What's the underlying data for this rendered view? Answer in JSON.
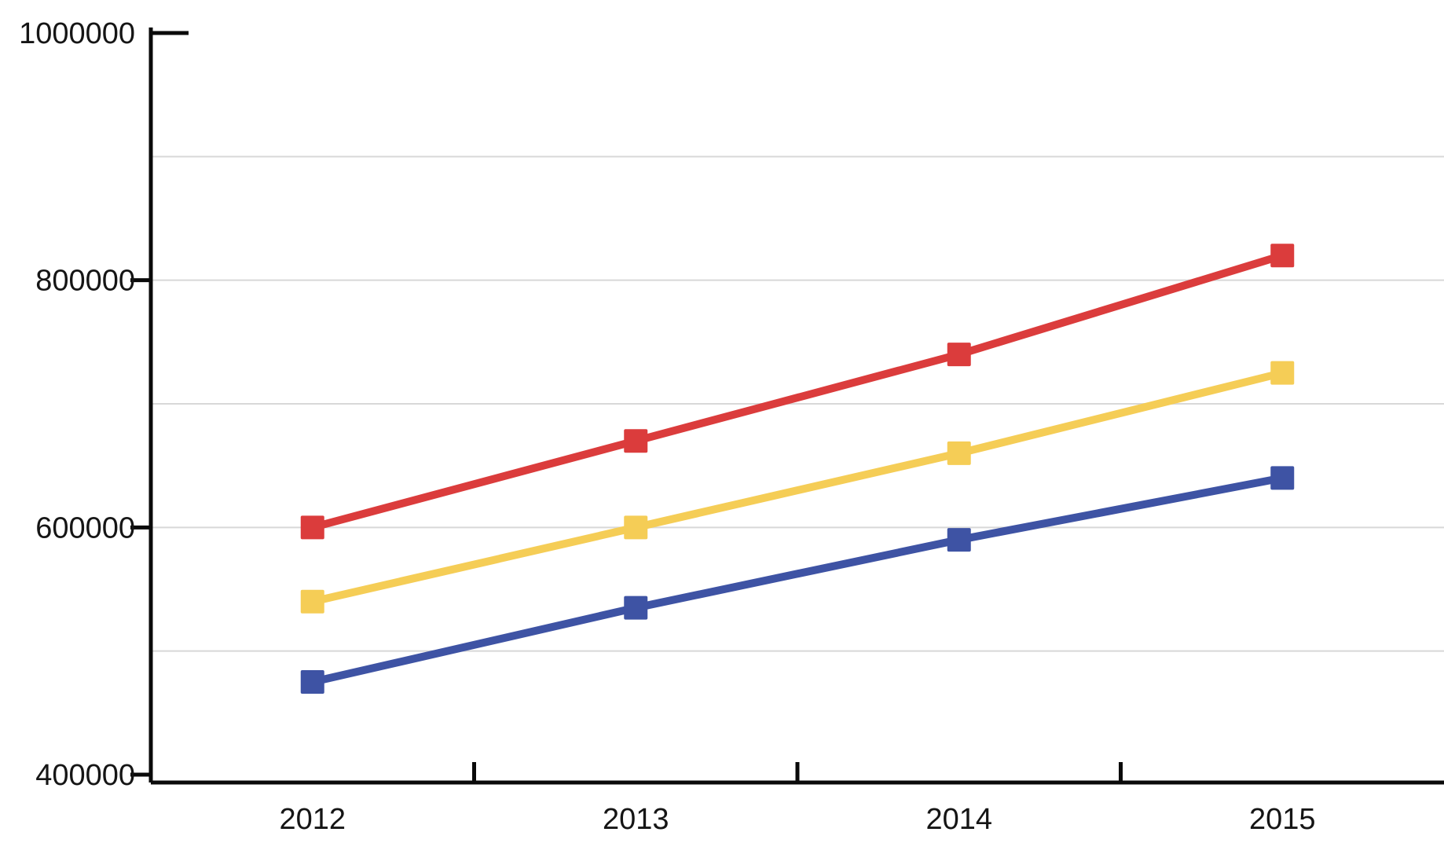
{
  "chart_data": {
    "type": "line",
    "categories": [
      "2012",
      "2013",
      "2014",
      "2015"
    ],
    "series": [
      {
        "name": "blue",
        "color": "#3e53a4",
        "values": [
          475000,
          535000,
          590000,
          640000
        ]
      },
      {
        "name": "yellow",
        "color": "#f5cd56",
        "values": [
          540000,
          600000,
          660000,
          725000
        ]
      },
      {
        "name": "red",
        "color": "#db3c3c",
        "values": [
          600000,
          670000,
          740000,
          820000
        ]
      }
    ],
    "ylim": [
      400000,
      1000000
    ],
    "y_ticks": [
      {
        "value": 400000,
        "label": "400000"
      },
      {
        "value": 600000,
        "label": "600000"
      },
      {
        "value": 800000,
        "label": "800000"
      },
      {
        "value": 1000000,
        "label": "1000000"
      }
    ],
    "gridline_values": [
      500000,
      600000,
      700000,
      800000,
      900000
    ],
    "grid": true,
    "legend_position": "none",
    "marker_shape": "square"
  },
  "style_colors": {
    "axis_color": "#0a0a0a",
    "grid_color": "#d8d8d8",
    "text_color": "#151515",
    "background": "#ffffff"
  }
}
